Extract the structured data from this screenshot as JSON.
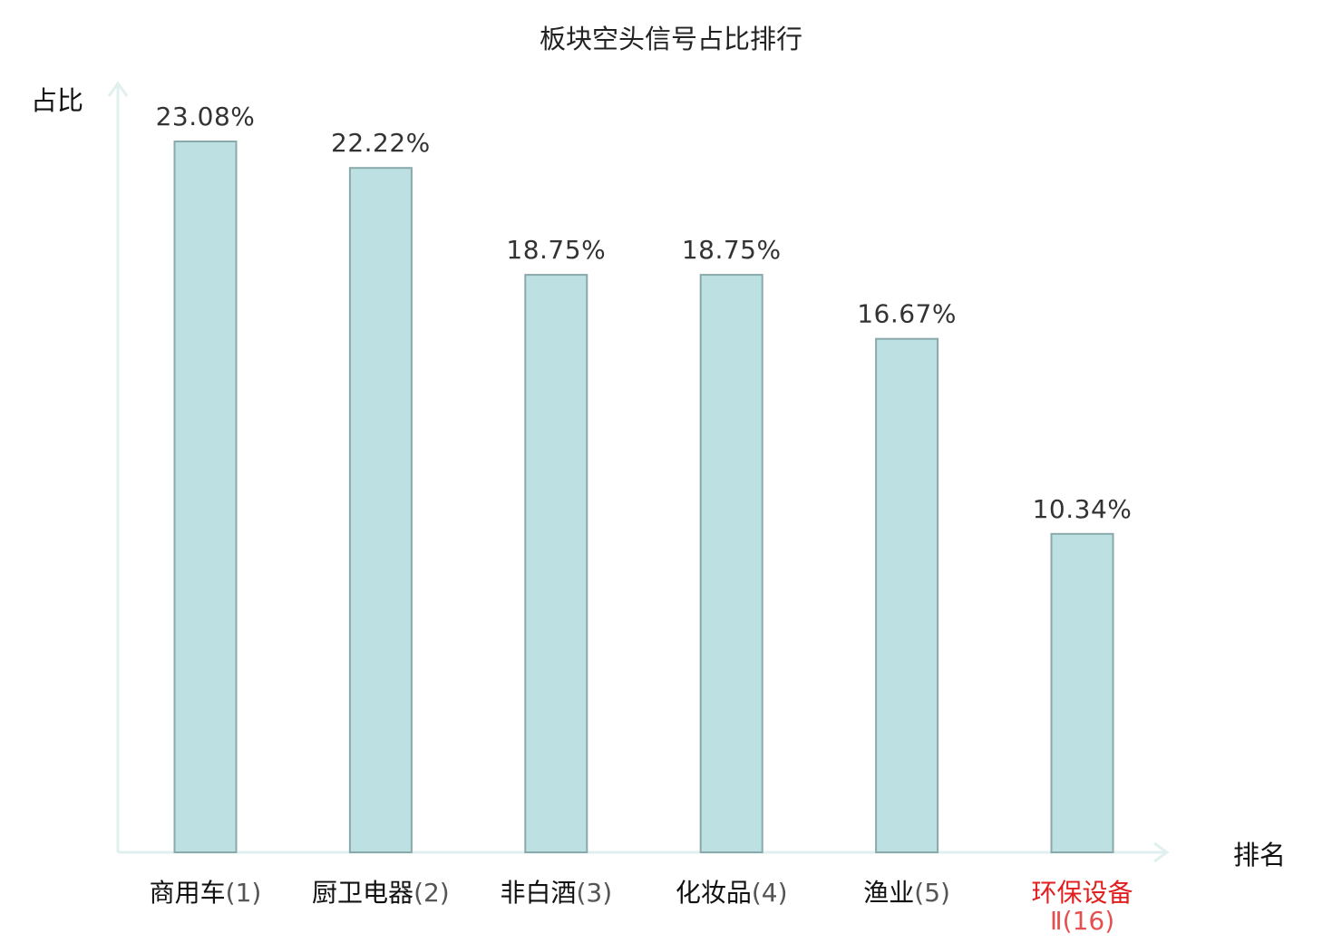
{
  "chart_data": {
    "type": "bar",
    "title": "板块空头信号占比排行",
    "xlabel": "排名",
    "ylabel": "占比",
    "ylim": [
      0,
      23.08
    ],
    "grid": false,
    "legend": "none",
    "categories": [
      {
        "name": "商用车",
        "rank": "(1)",
        "highlight": false
      },
      {
        "name": "厨卫电器",
        "rank": "(2)",
        "highlight": false
      },
      {
        "name": "非白酒",
        "rank": "(3)",
        "highlight": false
      },
      {
        "name": "化妆品",
        "rank": "(4)",
        "highlight": false
      },
      {
        "name": "渔业",
        "rank": "(5)",
        "highlight": false
      },
      {
        "name": "环保设备",
        "rank": "Ⅱ(16)",
        "highlight": true
      }
    ],
    "values": [
      23.08,
      22.22,
      18.75,
      18.75,
      16.67,
      10.34
    ],
    "value_labels": [
      "23.08%",
      "22.22%",
      "18.75%",
      "18.75%",
      "16.67%",
      "10.34%"
    ]
  },
  "colors": {
    "bar_fill": "#bde0e3",
    "bar_stroke": "#8aa9aa",
    "axis": "#dff0ee",
    "highlight_text": "#e02020",
    "highlight_rank": "#e45050"
  }
}
